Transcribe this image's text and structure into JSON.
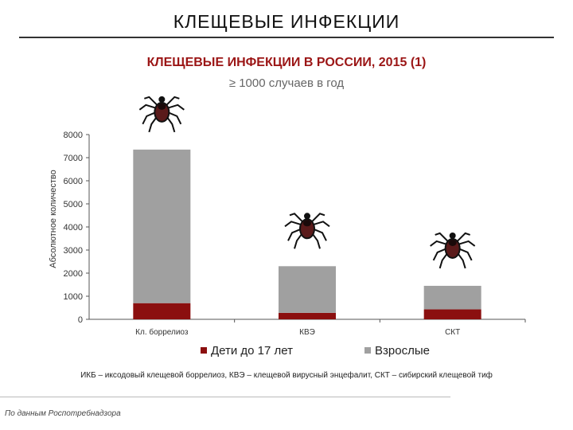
{
  "slide": {
    "title": "КЛЕЩЕВЫЕ ИНФЕКЦИИ",
    "footnote": "ИКБ – иксодовый клещевой боррелиоз, КВЭ – клещевой вирусный энцефалит, СКТ – сибирский клещевой тиф",
    "source": "По данным Роспотребнадзора"
  },
  "colors": {
    "children": "#8b0f0f",
    "adults": "#a0a0a0",
    "title_accent": "#9b1515"
  },
  "icons": [
    "tick-icon",
    "tick-icon",
    "tick-icon"
  ],
  "chart_data": {
    "type": "bar",
    "stacked": true,
    "title": "КЛЕЩЕВЫЕ ИНФЕКЦИИ В РОССИИ, 2015 (1)",
    "subtitle": "≥ 1000 случаев в год",
    "xlabel": "",
    "ylabel": "Абсолютное количество",
    "categories": [
      "Кл. боррелиоз",
      "КВЭ",
      "СКТ"
    ],
    "series": [
      {
        "name": "Дети до 17 лет",
        "values": [
          700,
          280,
          430
        ]
      },
      {
        "name": "Взрослые",
        "values": [
          6650,
          2020,
          1020
        ]
      }
    ],
    "ylim": [
      0,
      8000
    ],
    "yticks": [
      "0",
      "1000",
      "2000",
      "3000",
      "4000",
      "5000",
      "6000",
      "7000",
      "8000"
    ],
    "grid": false,
    "legend": "bottom"
  }
}
